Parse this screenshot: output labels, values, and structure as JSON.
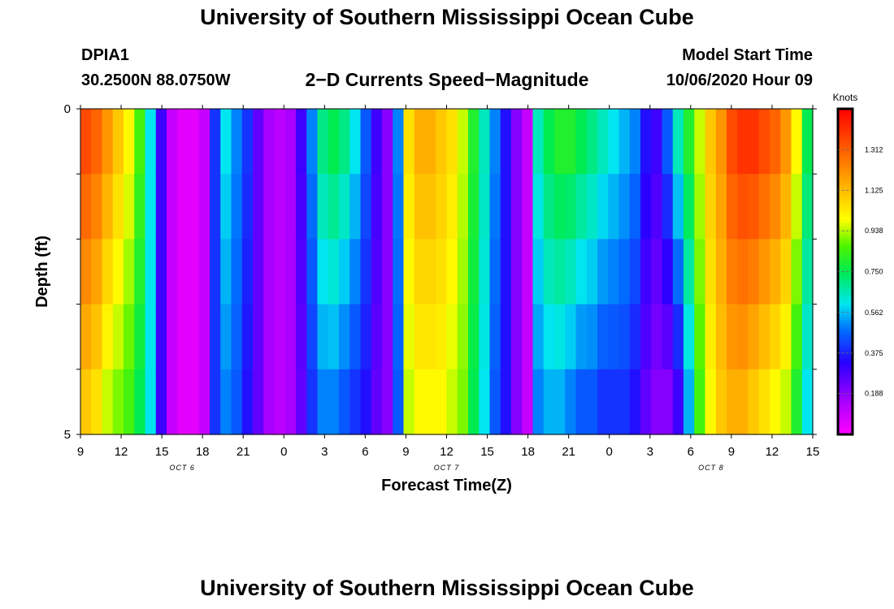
{
  "header": {
    "title": "University of Southern Mississippi Ocean Cube",
    "station_id": "DPIA1",
    "station_coords": "30.2500N 88.0750W",
    "product": "2−D Currents Speed−Magnitude",
    "model_start_label": "Model Start Time",
    "model_start_value": "10/06/2020 Hour 09"
  },
  "footer": {
    "title": "University of Southern Mississippi Ocean Cube"
  },
  "chart_data": {
    "type": "heatmap",
    "title": "2-D Currents Speed-Magnitude",
    "xlabel": "Forecast Time(Z)",
    "ylabel": "Depth (ft)",
    "x_ticks": [
      "9",
      "12",
      "15",
      "18",
      "21",
      "0",
      "3",
      "6",
      "9",
      "12",
      "15",
      "18",
      "21",
      "0",
      "3",
      "6",
      "9",
      "12",
      "15"
    ],
    "x_hours": [
      0,
      3,
      6,
      9,
      12,
      15,
      18,
      21,
      24,
      27,
      30,
      33,
      36,
      39,
      42,
      45,
      48,
      51,
      54
    ],
    "date_labels": [
      {
        "label": "OCT 6",
        "hour": 7.5
      },
      {
        "label": "OCT 7",
        "hour": 27
      },
      {
        "label": "OCT 8",
        "hour": 46.5
      }
    ],
    "y_ticks": [
      "0",
      "5"
    ],
    "ylim": [
      0,
      5
    ],
    "xlim_hours": [
      0,
      54
    ],
    "depth_bins": 5,
    "colorbar": {
      "label": "Knots",
      "ticks": [
        "1.312",
        "1.125",
        "0.938",
        "0.750",
        "0.562",
        "0.375",
        "0.188"
      ],
      "tick_values": [
        1.312,
        1.125,
        0.938,
        0.75,
        0.562,
        0.375,
        0.188
      ],
      "range": [
        0,
        1.5
      ]
    },
    "surface_speed_kts": [
      1.35,
      1.3,
      1.2,
      1.1,
      1.0,
      0.85,
      0.6,
      0.3,
      0.1,
      0.05,
      0.05,
      0.1,
      0.4,
      0.6,
      0.5,
      0.4,
      0.25,
      0.15,
      0.12,
      0.15,
      0.3,
      0.5,
      0.7,
      0.75,
      0.7,
      0.6,
      0.45,
      0.3,
      0.2,
      0.5,
      1.05,
      1.15,
      1.15,
      1.1,
      1.05,
      0.95,
      0.8,
      0.65,
      0.5,
      0.35,
      0.2,
      0.1,
      0.65,
      0.75,
      0.8,
      0.8,
      0.75,
      0.7,
      0.65,
      0.6,
      0.55,
      0.5,
      0.35,
      0.3,
      0.45,
      0.65,
      0.8,
      0.95,
      1.1,
      1.2,
      1.35,
      1.4,
      1.4,
      1.35,
      1.3,
      1.2,
      1.0,
      0.75
    ],
    "bottom_speed_kts": [
      1.1,
      1.05,
      0.95,
      0.9,
      0.85,
      0.75,
      0.6,
      0.3,
      0.1,
      0.05,
      0.05,
      0.1,
      0.4,
      0.5,
      0.45,
      0.35,
      0.25,
      0.15,
      0.12,
      0.15,
      0.25,
      0.4,
      0.5,
      0.5,
      0.45,
      0.4,
      0.35,
      0.25,
      0.2,
      0.45,
      0.95,
      1.0,
      1.0,
      1.0,
      0.95,
      0.9,
      0.75,
      0.6,
      0.45,
      0.35,
      0.2,
      0.1,
      0.5,
      0.55,
      0.55,
      0.5,
      0.45,
      0.45,
      0.4,
      0.4,
      0.4,
      0.35,
      0.25,
      0.2,
      0.2,
      0.3,
      0.55,
      0.85,
      1.0,
      1.1,
      1.15,
      1.15,
      1.1,
      1.05,
      1.0,
      0.95,
      0.8,
      0.6
    ]
  }
}
